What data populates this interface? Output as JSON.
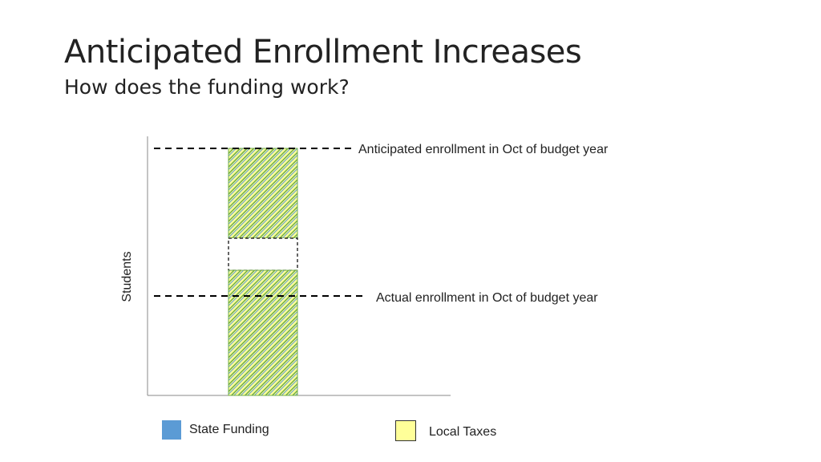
{
  "slide": {
    "title": "Anticipated Enrollment Increases",
    "subtitle": "How does the funding work?"
  },
  "diagram": {
    "y_axis_label": "Students",
    "lines": {
      "anticipated": "Anticipated enrollment in Oct of budget year",
      "actual": "Actual enrollment in Oct of budget year"
    }
  },
  "legend": {
    "state": {
      "label": "State Funding",
      "color": "#5b9bd5"
    },
    "local": {
      "label": "Local Taxes",
      "color": "#ffff99"
    }
  },
  "colors": {
    "hatch_blue": "#5b9bd5",
    "hatch_yellow": "#ffff99",
    "hatch_green": "#70ad47"
  }
}
